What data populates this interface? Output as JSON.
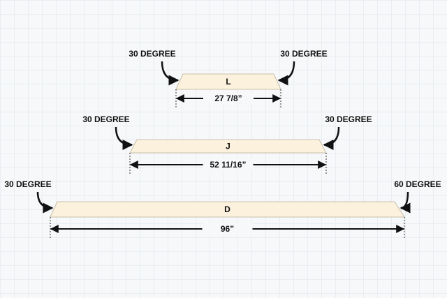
{
  "pieces": [
    {
      "label": "L",
      "length": "27 7/8”",
      "left_angle": "30 DEGREE",
      "right_angle": "30 DEGREE"
    },
    {
      "label": "J",
      "length": "52 11/16”",
      "left_angle": "30 DEGREE",
      "right_angle": "30 DEGREE"
    },
    {
      "label": "D",
      "length": "96”",
      "left_angle": "30 DEGREE",
      "right_angle": "60 DEGREE"
    }
  ]
}
